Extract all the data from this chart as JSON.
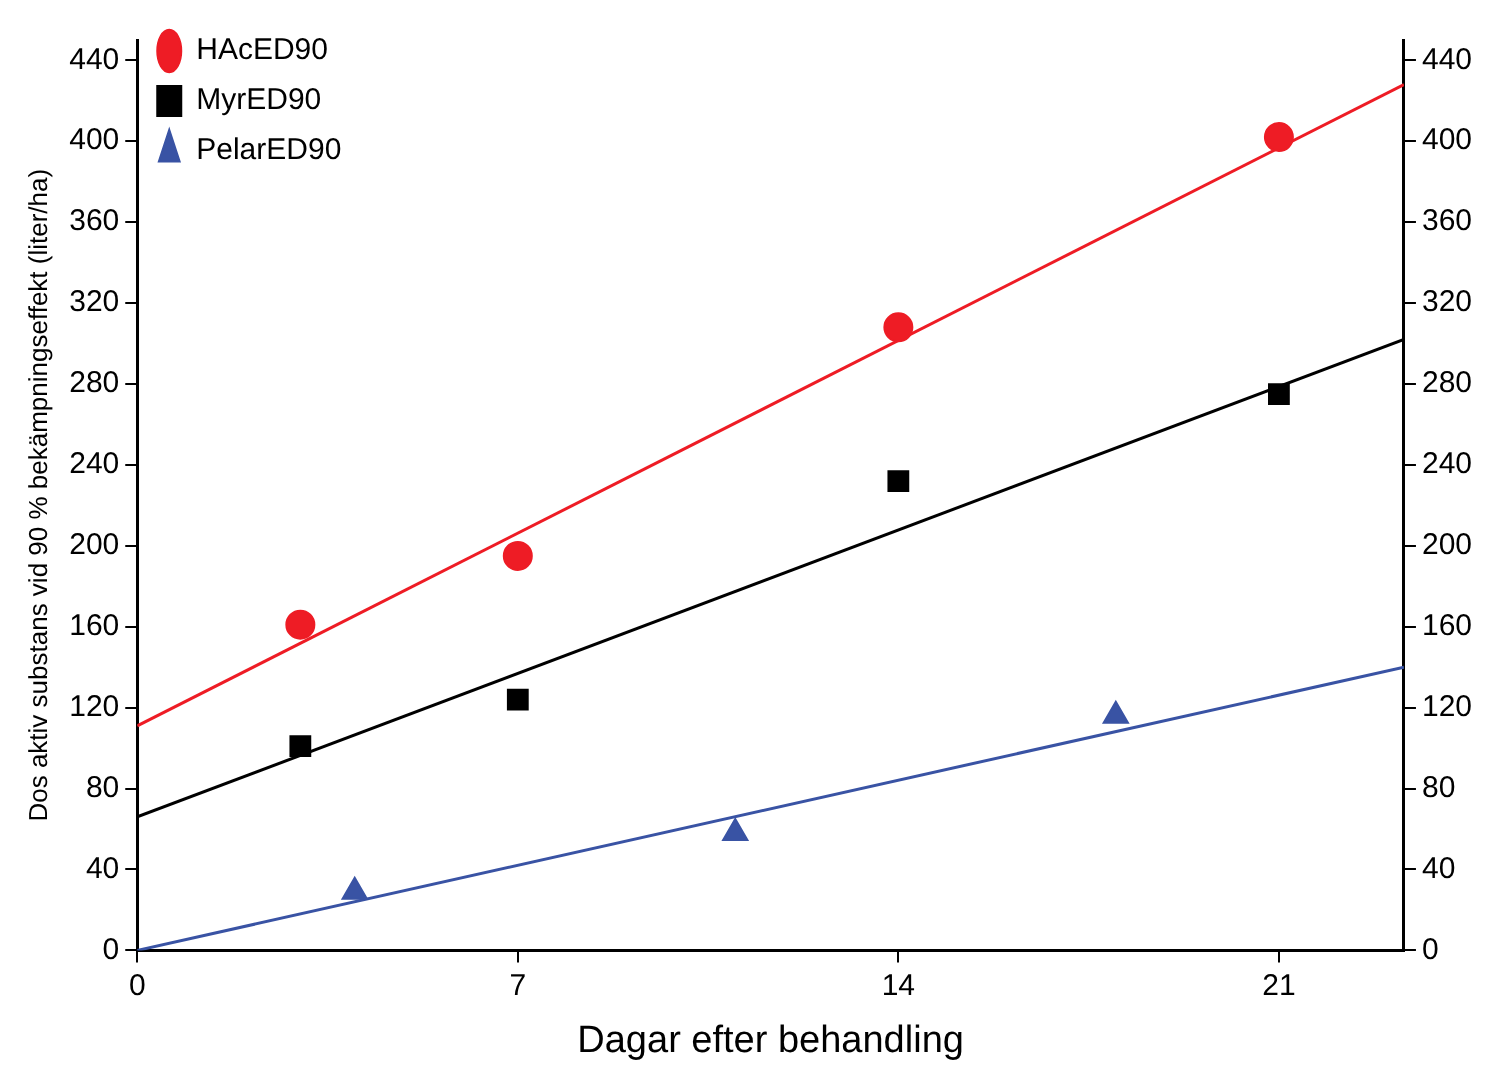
{
  "chart_data": {
    "type": "scatter",
    "xlabel": "Dagar efter behandling",
    "ylabel": "Dos aktiv substans vid 90 % bekämpningseffekt (liter/ha)",
    "xlim": [
      0,
      23.3
    ],
    "xticks": [
      0,
      7,
      14,
      21
    ],
    "ylim": [
      0,
      450
    ],
    "yticks": [
      0,
      40,
      80,
      120,
      160,
      200,
      240,
      280,
      320,
      360,
      400,
      440
    ],
    "y2lim": [
      0,
      450
    ],
    "y2ticks": [
      0,
      40,
      80,
      120,
      160,
      200,
      240,
      280,
      320,
      360,
      400,
      440
    ],
    "grid": false,
    "legend": "top left",
    "series": [
      {
        "name": "HAcED90",
        "type": "scatter",
        "marker": "circle",
        "color": "#ee1c25",
        "x": [
          3,
          7,
          14,
          21
        ],
        "values": [
          161,
          195,
          308,
          402
        ]
      },
      {
        "name": "MyrED90",
        "type": "scatter",
        "marker": "square",
        "color": "#000000",
        "x": [
          3,
          7,
          14,
          21
        ],
        "values": [
          101,
          124,
          232,
          275
        ]
      },
      {
        "name": "PelarED90",
        "type": "scatter",
        "marker": "triangle",
        "color": "#3953a4",
        "x": [
          4,
          11,
          18
        ],
        "values": [
          29,
          58,
          116
        ]
      },
      {
        "type": "line",
        "color": "#ee1c25",
        "x": [
          0,
          23.3
        ],
        "values": [
          111,
          428
        ]
      },
      {
        "type": "line",
        "color": "#000000",
        "x": [
          0,
          23.3
        ],
        "values": [
          66,
          302
        ]
      },
      {
        "type": "line",
        "color": "#3953a4",
        "x": [
          0,
          23.3
        ],
        "values": [
          0,
          140
        ]
      }
    ]
  }
}
